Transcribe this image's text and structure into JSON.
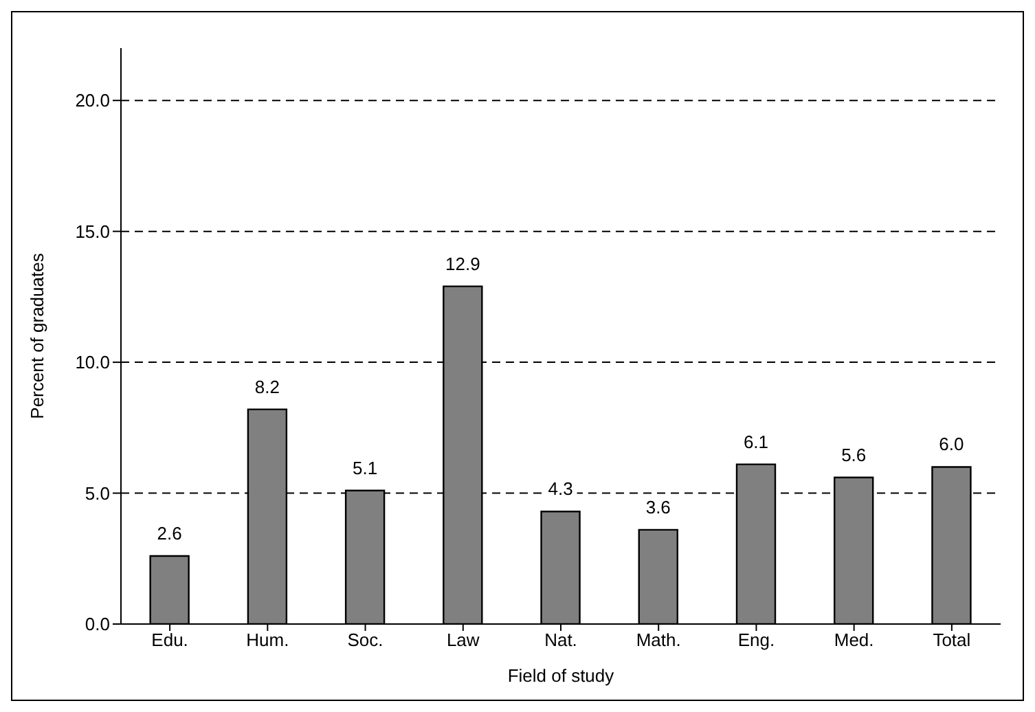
{
  "chart_data": {
    "type": "bar",
    "xlabel": "Field of study",
    "ylabel": "Percent of graduates",
    "categories": [
      "Edu.",
      "Hum.",
      "Soc.",
      "Law",
      "Nat.",
      "Math.",
      "Eng.",
      "Med.",
      "Total"
    ],
    "values": [
      2.6,
      8.2,
      5.1,
      12.9,
      4.3,
      3.6,
      6.1,
      5.6,
      6.0
    ],
    "color": "#808080",
    "ylim": [
      0,
      22
    ],
    "yticks": [
      {
        "value": 0,
        "label": "0.0"
      },
      {
        "value": 5,
        "label": "5.0"
      },
      {
        "value": 10,
        "label": "10.0"
      },
      {
        "value": 15,
        "label": "15.0"
      },
      {
        "value": 20,
        "label": "20.0"
      }
    ],
    "value_labels": [
      "2.6",
      "8.2",
      "5.1",
      "12.9",
      "4.3",
      "3.6",
      "6.1",
      "5.6",
      "6.0"
    ],
    "grid": "y",
    "line_style": "dashed"
  }
}
